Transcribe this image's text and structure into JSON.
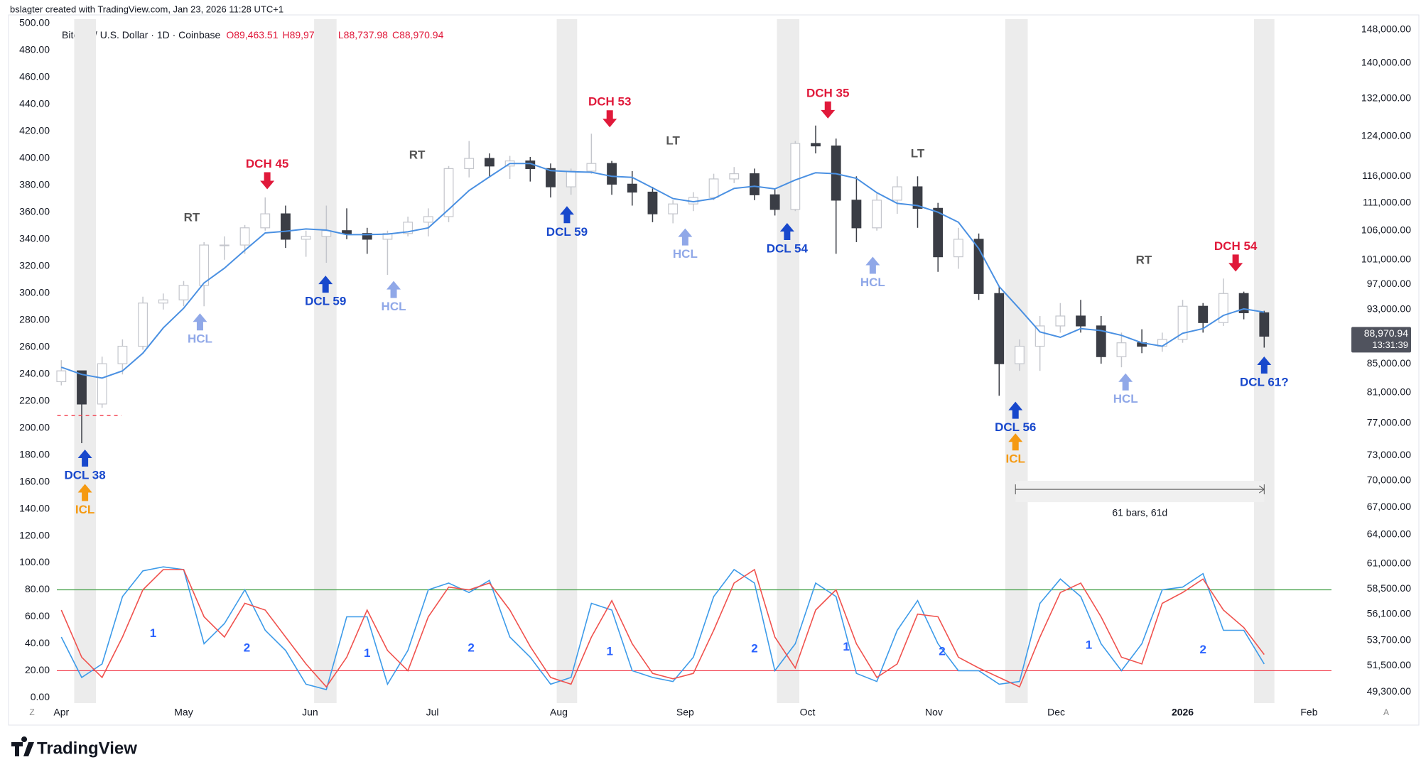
{
  "header": {
    "credit": "bslagter created with TradingView.com, Jan 23, 2026 11:28 UTC+1",
    "logo": "TradingView"
  },
  "chart_data": {
    "type": "candlestick",
    "symbol": "Bitcoin / U.S. Dollar · 1D · Coinbase",
    "ohlc_legend": [
      "O89,463.51",
      "H89,972.90",
      "L88,737.98",
      "C88,970.94"
    ],
    "up_color": "#c4c6cc",
    "down_color": "#3a3d45",
    "open": [
      82500,
      84000,
      79500,
      85000,
      87500,
      94000,
      94500,
      96800,
      103500,
      103500,
      106500,
      109000,
      104500,
      105000,
      106000,
      105500,
      104500,
      105500,
      107500,
      108500,
      117500,
      119500,
      118000,
      119000,
      117500,
      114000,
      117000,
      118500,
      114500,
      113000,
      109000,
      110800,
      112000,
      115500,
      116500,
      112500,
      109800,
      122500,
      122000,
      111500,
      106500,
      111500,
      114000,
      110000,
      101500,
      104500,
      95500,
      85000,
      87500,
      90500,
      92000,
      90500,
      86000,
      88000,
      87500,
      88500,
      93500,
      91000,
      95500,
      92500
    ],
    "high": [
      85500,
      84000,
      86000,
      88500,
      95000,
      95500,
      97500,
      104000,
      105000,
      107000,
      112000,
      110500,
      106000,
      110500,
      110000,
      106500,
      106000,
      108500,
      110000,
      118000,
      123000,
      120500,
      120000,
      119800,
      118500,
      117500,
      124500,
      119000,
      117000,
      114000,
      111500,
      113000,
      116500,
      117800,
      117500,
      113500,
      123000,
      126200,
      123500,
      116000,
      113000,
      116000,
      116000,
      111000,
      106500,
      105500,
      96500,
      88500,
      92000,
      94000,
      94500,
      92000,
      89500,
      90000,
      89500,
      94500,
      94000,
      97900,
      95800,
      92800
    ],
    "low": [
      82000,
      74500,
      79000,
      83500,
      87000,
      93000,
      93500,
      93500,
      101000,
      102000,
      106000,
      103000,
      101500,
      100500,
      104500,
      102000,
      98500,
      105000,
      105000,
      107500,
      115800,
      116000,
      115500,
      115000,
      112000,
      112500,
      116500,
      112500,
      110500,
      107500,
      107300,
      109500,
      111500,
      114700,
      111500,
      108700,
      109500,
      120500,
      102000,
      104000,
      106000,
      109000,
      106500,
      99000,
      99500,
      94500,
      80600,
      84000,
      84000,
      89500,
      89500,
      85000,
      84500,
      86500,
      86700,
      88000,
      89500,
      90500,
      91500,
      87300
    ],
    "close": [
      84000,
      79500,
      85000,
      87500,
      94000,
      94500,
      96800,
      103500,
      103500,
      106500,
      109000,
      104500,
      105000,
      106000,
      105500,
      104500,
      105500,
      107500,
      108500,
      117500,
      119500,
      118000,
      119000,
      117500,
      114000,
      117000,
      118500,
      114500,
      113000,
      109000,
      110800,
      112000,
      115500,
      116500,
      112500,
      109800,
      122500,
      122000,
      111500,
      106500,
      111500,
      114000,
      110000,
      101500,
      104500,
      95500,
      85000,
      87500,
      90500,
      92000,
      90500,
      86000,
      88000,
      87500,
      88500,
      93500,
      91000,
      95500,
      92500,
      88971
    ],
    "ma": {
      "color": "#4a90e2",
      "values": [
        84500,
        83500,
        83000,
        84000,
        86500,
        90200,
        93200,
        97200,
        99600,
        102600,
        105600,
        105900,
        106300,
        106100,
        105300,
        105300,
        105400,
        105800,
        106500,
        109800,
        113300,
        115900,
        118500,
        118500,
        117100,
        116900,
        116800,
        116000,
        115800,
        113800,
        111800,
        111200,
        111800,
        113700,
        114100,
        113600,
        115300,
        116700,
        116500,
        115600,
        112900,
        110900,
        110500,
        109300,
        107500,
        102900,
        96600,
        93100,
        89600,
        88800,
        90100,
        89800,
        89100,
        88000,
        87500,
        89400,
        90100,
        92100,
        93100,
        92600
      ]
    },
    "stoch": [
      {
        "color": "#3d9be9",
        "values": [
          45,
          15,
          25,
          75,
          94,
          97,
          95,
          40,
          55,
          80,
          50,
          35,
          10,
          6,
          60,
          60,
          10,
          35,
          80,
          85,
          78,
          87,
          45,
          30,
          10,
          15,
          70,
          65,
          20,
          15,
          12,
          30,
          75,
          95,
          85,
          20,
          40,
          85,
          75,
          18,
          12,
          50,
          72,
          40,
          20,
          20,
          10,
          12,
          70,
          88,
          75,
          40,
          20,
          40,
          80,
          82,
          92,
          50,
          50,
          25
        ]
      },
      {
        "color": "#f0524e",
        "values": [
          65,
          30,
          15,
          45,
          80,
          95,
          95,
          60,
          45,
          70,
          65,
          45,
          25,
          8,
          30,
          65,
          35,
          20,
          60,
          82,
          80,
          85,
          65,
          38,
          15,
          10,
          45,
          72,
          40,
          18,
          14,
          18,
          50,
          85,
          95,
          45,
          22,
          65,
          80,
          40,
          15,
          25,
          62,
          60,
          30,
          22,
          15,
          8,
          45,
          78,
          85,
          60,
          30,
          25,
          70,
          78,
          88,
          65,
          52,
          32
        ]
      }
    ],
    "stoch_levels": [
      {
        "value": 80,
        "color": "#43a047"
      },
      {
        "value": 20,
        "color": "#f23645"
      }
    ],
    "dashed_level": {
      "value": 78000,
      "x": [
        -0.2,
        2.95
      ],
      "color": "#f23645"
    },
    "highlight_bands": [
      [
        0.63,
        1.7
      ],
      [
        12.4,
        13.5
      ],
      [
        24.3,
        25.3
      ],
      [
        35.1,
        36.2
      ],
      [
        46.3,
        47.4
      ],
      [
        58.5,
        59.5
      ]
    ],
    "annotations": [
      {
        "text": "DCL 38",
        "color": "#1848cc",
        "dir": "up",
        "x": 1.16,
        "y": 184
      },
      {
        "text": "ICL",
        "color": "#f59a12",
        "dir": "up",
        "x": 1.16,
        "y": 158.5
      },
      {
        "text": "DCH 45",
        "color": "#e0193a",
        "dir": "down",
        "x": 10.1,
        "y": 377
      },
      {
        "text": "RT",
        "color": "#555555",
        "dir": "none",
        "x": 6.4,
        "y": 355.7
      },
      {
        "text": "HCL",
        "color": "#90a8e8",
        "dir": "up",
        "x": 6.8,
        "y": 285
      },
      {
        "text": "DCL 59",
        "color": "#1848cc",
        "dir": "up",
        "x": 12.96,
        "y": 313
      },
      {
        "text": "HCL",
        "color": "#90a8e8",
        "dir": "up",
        "x": 16.3,
        "y": 309
      },
      {
        "text": "RT",
        "color": "#555555",
        "dir": "none",
        "x": 17.45,
        "y": 402
      },
      {
        "text": "DCL 59",
        "color": "#1848cc",
        "dir": "up",
        "x": 24.8,
        "y": 364.5
      },
      {
        "text": "DCH 53",
        "color": "#e0193a",
        "dir": "down",
        "x": 26.9,
        "y": 423
      },
      {
        "text": "LT",
        "color": "#555555",
        "dir": "none",
        "x": 30,
        "y": 412.6
      },
      {
        "text": "HCL",
        "color": "#90a8e8",
        "dir": "up",
        "x": 30.6,
        "y": 348
      },
      {
        "text": "DCL 54",
        "color": "#1848cc",
        "dir": "up",
        "x": 35.6,
        "y": 352
      },
      {
        "text": "DCH 35",
        "color": "#e0193a",
        "dir": "down",
        "x": 37.6,
        "y": 429.5
      },
      {
        "text": "LT",
        "color": "#555555",
        "dir": "none",
        "x": 42.0,
        "y": 403
      },
      {
        "text": "HCL",
        "color": "#90a8e8",
        "dir": "up",
        "x": 39.8,
        "y": 327
      },
      {
        "text": "DCL 56",
        "color": "#1848cc",
        "dir": "up",
        "x": 46.8,
        "y": 219.5
      },
      {
        "text": "ICL",
        "color": "#f59a12",
        "dir": "up",
        "x": 46.8,
        "y": 196
      },
      {
        "text": "RT",
        "color": "#555555",
        "dir": "none",
        "x": 53.1,
        "y": 324
      },
      {
        "text": "HCL",
        "color": "#90a8e8",
        "dir": "up",
        "x": 52.2,
        "y": 240.5
      },
      {
        "text": "DCH 54",
        "color": "#e0193a",
        "dir": "down",
        "x": 57.6,
        "y": 316
      },
      {
        "text": "DCL 61?",
        "color": "#1848cc",
        "dir": "up",
        "x": 59,
        "y": 253
      }
    ],
    "cycle_labels": [
      {
        "text": "1",
        "x": 4.5,
        "y": 47.4
      },
      {
        "text": "2",
        "x": 9.1,
        "y": 36.6
      },
      {
        "text": "1",
        "x": 15,
        "y": 32.5
      },
      {
        "text": "2",
        "x": 20.1,
        "y": 36.6
      },
      {
        "text": "1",
        "x": 26.9,
        "y": 33.9
      },
      {
        "text": "2",
        "x": 34.0,
        "y": 36
      },
      {
        "text": "1",
        "x": 38.5,
        "y": 37.3
      },
      {
        "text": "2",
        "x": 43.2,
        "y": 33.9
      },
      {
        "text": "1",
        "x": 50.4,
        "y": 38.6
      },
      {
        "text": "2",
        "x": 56.0,
        "y": 35.2
      }
    ],
    "measure": {
      "label": "61 bars, 61d",
      "x": [
        46.8,
        59.0
      ],
      "y": 154.5
    },
    "last_price": {
      "value": 88970.94,
      "label": "88,970.94",
      "countdown": "13:31:39"
    },
    "xlim": [
      -0.22,
      62.3
    ],
    "xticks": [
      {
        "value": 0,
        "label": "Apr"
      },
      {
        "value": 6,
        "label": "May"
      },
      {
        "value": 12.2,
        "label": "Jun"
      },
      {
        "value": 18.2,
        "label": "Jul"
      },
      {
        "value": 24.4,
        "label": "Aug"
      },
      {
        "value": 30.6,
        "label": "Sep"
      },
      {
        "value": 36.6,
        "label": "Oct"
      },
      {
        "value": 42.8,
        "label": "Nov"
      },
      {
        "value": 48.8,
        "label": "Dec"
      },
      {
        "value": 55,
        "label": "2026",
        "bold": true
      },
      {
        "value": 61.2,
        "label": "Feb"
      }
    ],
    "ylim": [
      -4,
      500
    ],
    "yticks": [
      {
        "value": 0,
        "label": "0.00"
      },
      {
        "value": 20,
        "label": "20.00"
      },
      {
        "value": 40,
        "label": "40.00"
      },
      {
        "value": 60,
        "label": "60.00"
      },
      {
        "value": 80,
        "label": "80.00"
      },
      {
        "value": 100,
        "label": "100.00"
      },
      {
        "value": 120,
        "label": "120.00"
      },
      {
        "value": 140,
        "label": "140.00"
      },
      {
        "value": 160,
        "label": "160.00"
      },
      {
        "value": 180,
        "label": "180.00"
      },
      {
        "value": 200,
        "label": "200.00"
      },
      {
        "value": 220,
        "label": "220.00"
      },
      {
        "value": 240,
        "label": "240.00"
      },
      {
        "value": 260,
        "label": "260.00"
      },
      {
        "value": 280,
        "label": "280.00"
      },
      {
        "value": 300,
        "label": "300.00"
      },
      {
        "value": 320,
        "label": "320.00"
      },
      {
        "value": 340,
        "label": "340.00"
      },
      {
        "value": 360,
        "label": "360.00"
      },
      {
        "value": 380,
        "label": "380.00"
      },
      {
        "value": 400,
        "label": "400.00"
      },
      {
        "value": 420,
        "label": "420.00"
      },
      {
        "value": 440,
        "label": "440.00"
      },
      {
        "value": 460,
        "label": "460.00"
      },
      {
        "value": 480,
        "label": "480.00"
      },
      {
        "value": 500,
        "label": "500.00"
      }
    ],
    "y2lim": [
      48400,
      149500
    ],
    "y2log": true,
    "y2ticks": [
      {
        "value": 49300,
        "label": "49,300.00"
      },
      {
        "value": 51500,
        "label": "51,500.00"
      },
      {
        "value": 53700,
        "label": "53,700.00"
      },
      {
        "value": 56100,
        "label": "56,100.00"
      },
      {
        "value": 58500,
        "label": "58,500.00"
      },
      {
        "value": 61000,
        "label": "61,000.00"
      },
      {
        "value": 64000,
        "label": "64,000.00"
      },
      {
        "value": 67000,
        "label": "67,000.00"
      },
      {
        "value": 70000,
        "label": "70,000.00"
      },
      {
        "value": 73000,
        "label": "73,000.00"
      },
      {
        "value": 77000,
        "label": "77,000.00"
      },
      {
        "value": 81000,
        "label": "81,000.00"
      },
      {
        "value": 85000,
        "label": "85,000.00"
      },
      {
        "value": 93000,
        "label": "93,000.00"
      },
      {
        "value": 97000,
        "label": "97,000.00"
      },
      {
        "value": 101000,
        "label": "101,000.00"
      },
      {
        "value": 106000,
        "label": "106,000.00"
      },
      {
        "value": 111000,
        "label": "111,000.00"
      },
      {
        "value": 116000,
        "label": "116,000.00"
      },
      {
        "value": 124000,
        "label": "124,000.00"
      },
      {
        "value": 132000,
        "label": "132,000.00"
      },
      {
        "value": 140000,
        "label": "140,000.00"
      },
      {
        "value": 148000,
        "label": "148,000.00"
      }
    ],
    "corner_buttons": [
      "Z",
      "A"
    ]
  }
}
